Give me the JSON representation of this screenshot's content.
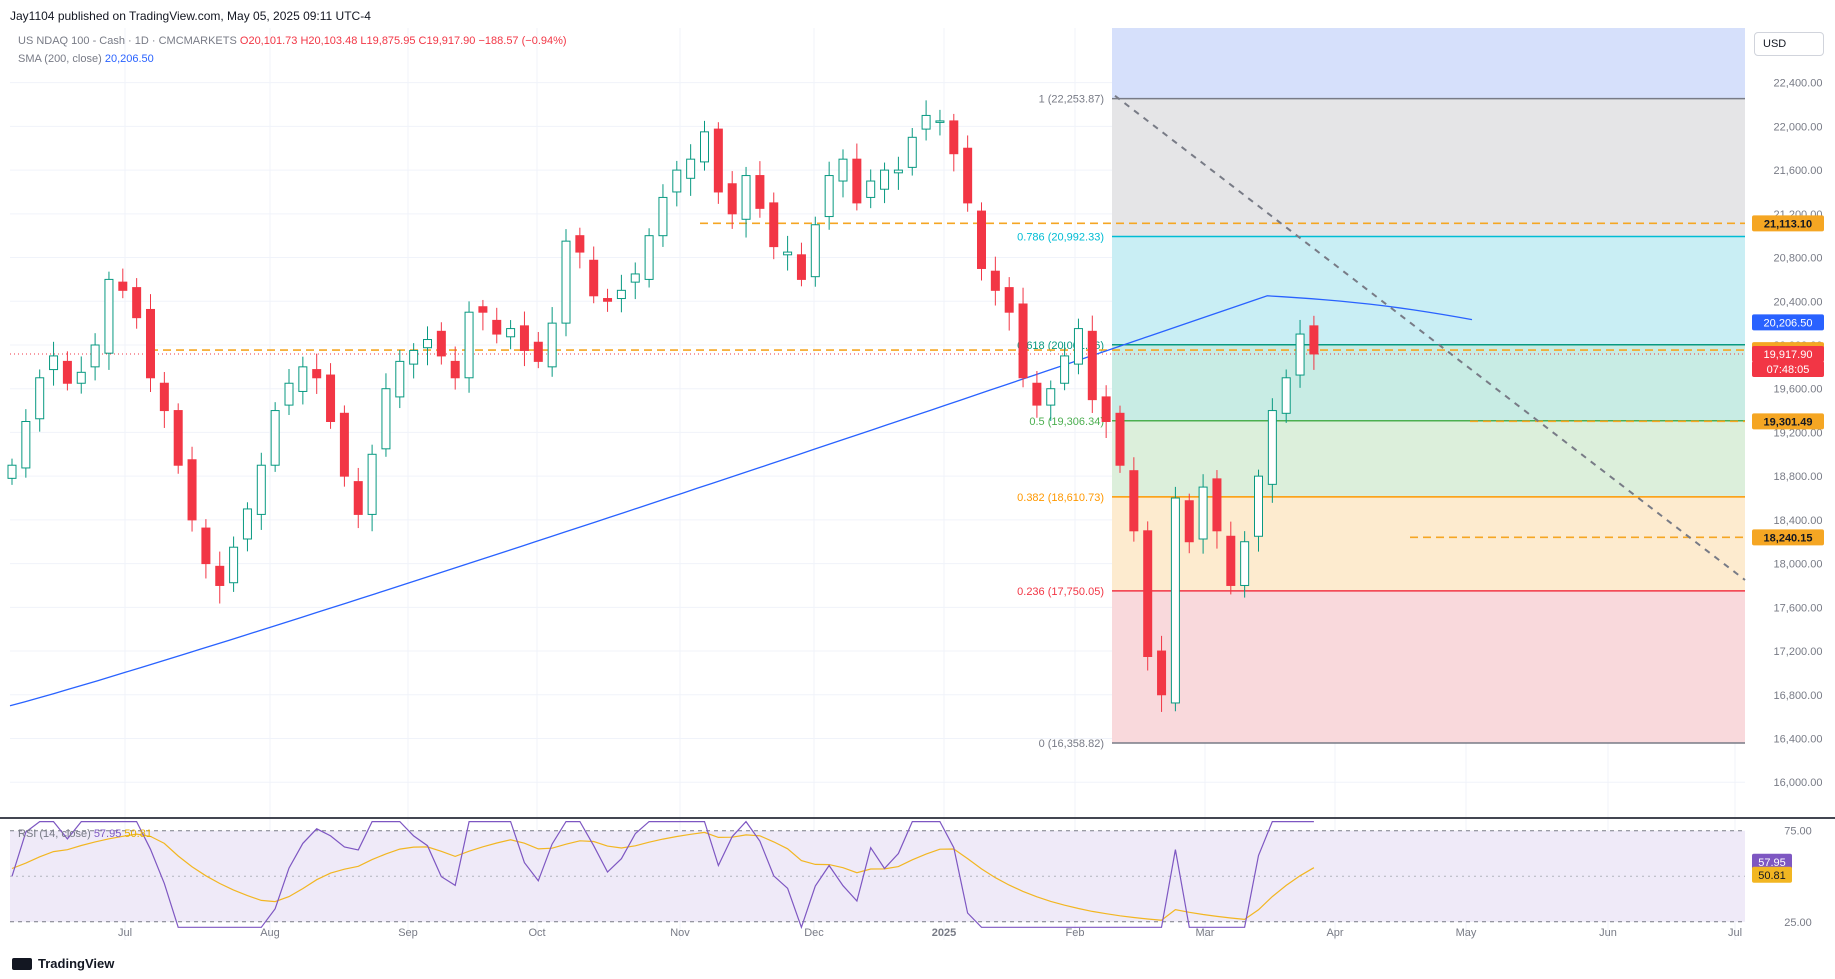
{
  "publisher": "Jay1104 published on TradingView.com, May 05, 2025 09:11 UTC-4",
  "symbol": {
    "name": "US NDAQ 100 - Cash · 1D · CMCMARKETS",
    "open": "O20,101.73",
    "high": "H20,103.48",
    "low": "L19,875.95",
    "close": "C19,917.90",
    "change": "−188.57 (−0.94%)"
  },
  "sma": {
    "label": "SMA (200, close)",
    "value": "20,206.50",
    "color": "#2962ff"
  },
  "currency_button": "USD",
  "footer_brand": "TradingView",
  "colors": {
    "up": "#089981",
    "down": "#f23645",
    "sma": "#2962ff",
    "rsi": "#7e57c2",
    "rsi_ma": "#f2b622",
    "hline": "#f5a623"
  },
  "chart_data": [
    {
      "type": "candlestick",
      "title": "US NDAQ 100 - Cash · 1D · CMCMARKETS",
      "y_ticks": [
        "22,400.00",
        "22,000.00",
        "21,600.00",
        "21,200.00",
        "20,800.00",
        "20,400.00",
        "20,000.00",
        "19,600.00",
        "19,200.00",
        "18,800.00",
        "18,400.00",
        "18,000.00",
        "17,600.00",
        "17,200.00",
        "16,800.00",
        "16,400.00",
        "16,000.00"
      ],
      "ylim": [
        15700,
        22900
      ],
      "x_ticks": [
        "Jul",
        "Aug",
        "Sep",
        "Oct",
        "Nov",
        "Dec",
        "2025",
        "Feb",
        "Mar",
        "Apr",
        "May",
        "Jun",
        "Jul"
      ],
      "approx_closes": [
        18900,
        19300,
        19700,
        19900,
        19650,
        19750,
        20000,
        20600,
        20500,
        20250,
        19700,
        19400,
        18900,
        18400,
        18000,
        17800,
        18150,
        18500,
        18900,
        19400,
        19650,
        19800,
        19700,
        19300,
        18800,
        18450,
        19000,
        19600,
        19850,
        19950,
        20050,
        19900,
        19700,
        20300,
        20300,
        20100,
        20150,
        19950,
        19850,
        20200,
        20950,
        20850,
        20450,
        20400,
        20500,
        20650,
        21000,
        21350,
        21600,
        21700,
        21950,
        21400,
        21200,
        21550,
        21250,
        20900,
        20850,
        20600,
        21100,
        21550,
        21700,
        21300,
        21500,
        21600,
        21600,
        21900,
        22100,
        22050,
        21750,
        21300,
        20700,
        20500,
        20300,
        19700,
        19450,
        19600,
        19900,
        20150,
        19500,
        19300,
        18900,
        18300,
        17150,
        16800,
        18600,
        18200,
        18700,
        18300,
        17800,
        18200,
        18800,
        19400,
        19700,
        20100,
        19918
      ],
      "fib_levels": [
        {
          "label": "1 (22,253.87)",
          "value": 22253.87,
          "color": "#787b86",
          "fill": "#e5e5e7"
        },
        {
          "label": "0.786 (20,992.33)",
          "value": 20992.33,
          "color": "#00bcd4",
          "fill": "#c9eef4"
        },
        {
          "label": "0.618 (20,001.96)",
          "value": 20001.96,
          "color": "#089981",
          "fill": "#c8ece4"
        },
        {
          "label": "0.5 (19,306.34)",
          "value": 19306.34,
          "color": "#4caf50",
          "fill": "#dcefdb"
        },
        {
          "label": "0.382 (18,610.73)",
          "value": 18610.73,
          "color": "#ff9800",
          "fill": "#fdebcf"
        },
        {
          "label": "0.236 (17,750.05)",
          "value": 17750.05,
          "color": "#f23645",
          "fill": "#f9d9dc"
        },
        {
          "label": "0 (16,358.82)",
          "value": 16358.82,
          "color": "#787b86",
          "fill": null
        }
      ],
      "horizontal_lines": [
        21113.1,
        19953.24,
        19301.49,
        18240.15
      ],
      "price_labels": [
        {
          "text": "21,113.10",
          "value": 21113.1,
          "bg": "#f5a623",
          "fg": "#131722"
        },
        {
          "text": "20,206.50",
          "value": 20206.5,
          "bg": "#2962ff",
          "fg": "#ffffff"
        },
        {
          "text": "19,953.24",
          "value": 19953.24,
          "bg": "#f5a623",
          "fg": "#131722"
        },
        {
          "text": "19,917.90",
          "value": 19917.9,
          "bg": "#f23645",
          "fg": "#ffffff"
        },
        {
          "text": "07:48:05",
          "value": null,
          "bg": "#f23645",
          "fg": "#ffffff"
        },
        {
          "text": "19,301.49",
          "value": 19301.49,
          "bg": "#f5a623",
          "fg": "#131722"
        },
        {
          "text": "18,240.15",
          "value": 18240.15,
          "bg": "#f5a623",
          "fg": "#131722"
        }
      ],
      "sma_200": {
        "start": 16700,
        "end": 20206.5
      },
      "trendline": {
        "from": 22280,
        "to": 17850
      }
    },
    {
      "type": "line",
      "title": "RSI (14, close)",
      "rsi_value": "57.95",
      "rsi_ma_value": "50.81",
      "levels": [
        "75.00",
        "25.00"
      ],
      "ylim": [
        15,
        82
      ]
    }
  ]
}
